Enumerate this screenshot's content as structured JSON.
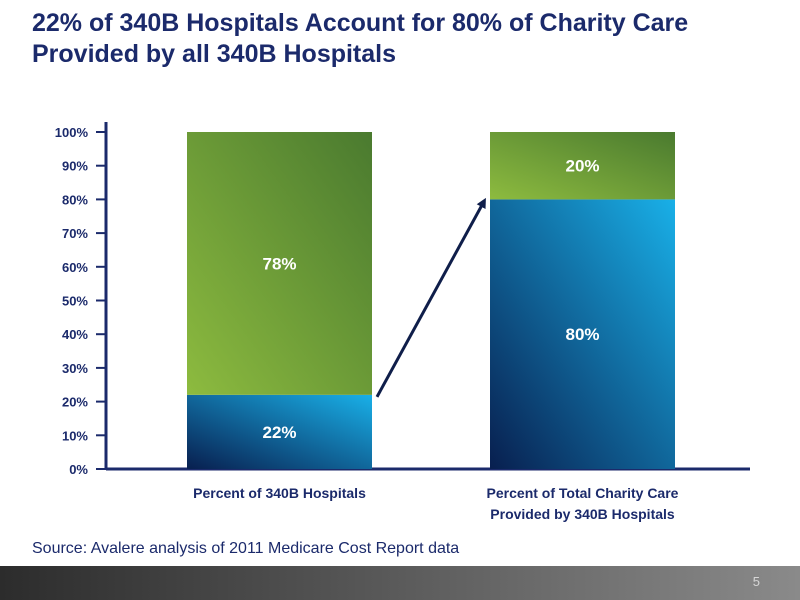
{
  "slide": {
    "title": "22% of 340B Hospitals Account for 80% of Charity Care Provided by all 340B Hospitals",
    "source": "Source: Avalere analysis of 2011 Medicare Cost Report data",
    "page_number": "5"
  },
  "colors": {
    "title": "#1b2a6b",
    "green_light": "#8dbb3f",
    "green_dark": "#4a7a2f",
    "blue_light": "#16a8e0",
    "blue_dark": "#0a2a62",
    "axis": "#1b2a6b",
    "arrow": "#0f1e4a"
  },
  "chart_data": {
    "type": "bar",
    "stacked": true,
    "categories": [
      [
        "Percent of 340B Hospitals"
      ],
      [
        "Percent of Total Charity Care",
        "Provided by 340B Hospitals"
      ]
    ],
    "series": [
      {
        "values": [
          22,
          80
        ],
        "color": "blue",
        "labels": [
          "22%",
          "80%"
        ]
      },
      {
        "values": [
          78,
          20
        ],
        "color": "green",
        "labels": [
          "78%",
          "20%"
        ]
      }
    ],
    "ylim": [
      0,
      100
    ],
    "yticks": [
      "0%",
      "10%",
      "20%",
      "30%",
      "40%",
      "50%",
      "60%",
      "70%",
      "80%",
      "90%",
      "100%"
    ],
    "annotation": "arrow from top of first bar's lower segment to top of second bar's lower segment",
    "grid": false,
    "legend": "none"
  }
}
